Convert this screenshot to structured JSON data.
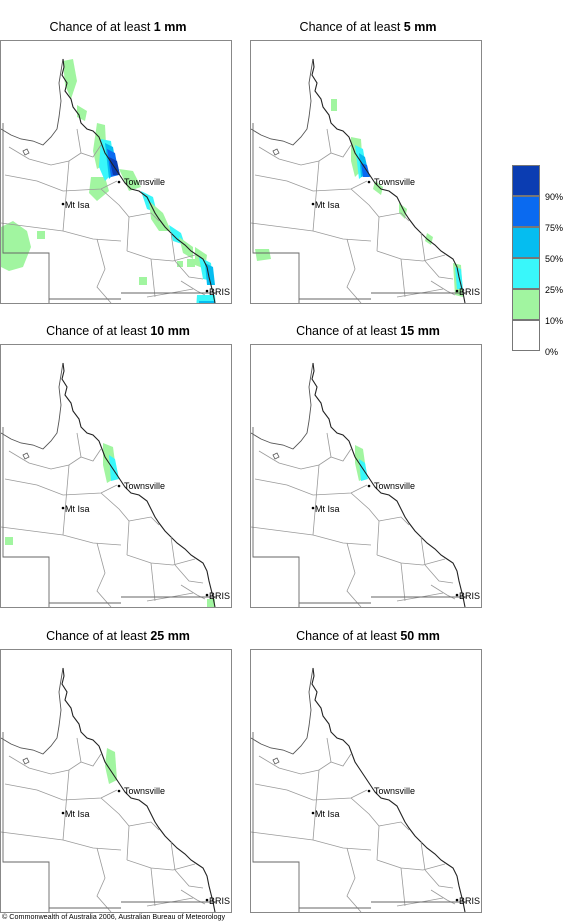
{
  "labels": {
    "townsville": "Townsville",
    "mt_isa": "Mt Isa",
    "bris": "BRIS"
  },
  "colors": {
    "bin_10_25": "#a1f5a0",
    "bin_25_50": "#39f7fa",
    "bin_50_75": "#05bdf0",
    "bin_75_90": "#0a6af0",
    "bin_90_100": "#0b3db2",
    "bin_0_10": "#ffffff"
  },
  "legend": {
    "tick_labels": [
      "90%",
      "75%",
      "50%",
      "25%",
      "10%",
      "0%"
    ],
    "bins": [
      {
        "range": "90-100",
        "color": "#0b3db2"
      },
      {
        "range": "75-90",
        "color": "#0a6af0"
      },
      {
        "range": "50-75",
        "color": "#05bdf0"
      },
      {
        "range": "25-50",
        "color": "#39f7fa"
      },
      {
        "range": "10-25",
        "color": "#a1f5a0"
      },
      {
        "range": "0-10",
        "color": "#ffffff"
      }
    ]
  },
  "panels": [
    {
      "title_prefix": "Chance of at least ",
      "threshold": "1 mm",
      "max_probability_class": "90%"
    },
    {
      "title_prefix": "Chance of at least ",
      "threshold": "5 mm",
      "max_probability_class": "90%"
    },
    {
      "title_prefix": "Chance of at least ",
      "threshold": "10 mm",
      "max_probability_class": "50%"
    },
    {
      "title_prefix": "Chance of at least ",
      "threshold": "15 mm",
      "max_probability_class": "50%"
    },
    {
      "title_prefix": "Chance of at least ",
      "threshold": "25 mm",
      "max_probability_class": "10%"
    },
    {
      "title_prefix": "Chance of at least ",
      "threshold": "50 mm",
      "max_probability_class": "0%"
    }
  ],
  "footer": {
    "copyright": "© Commonwealth of Australia 2006, Australian Bureau of Meteorology"
  }
}
